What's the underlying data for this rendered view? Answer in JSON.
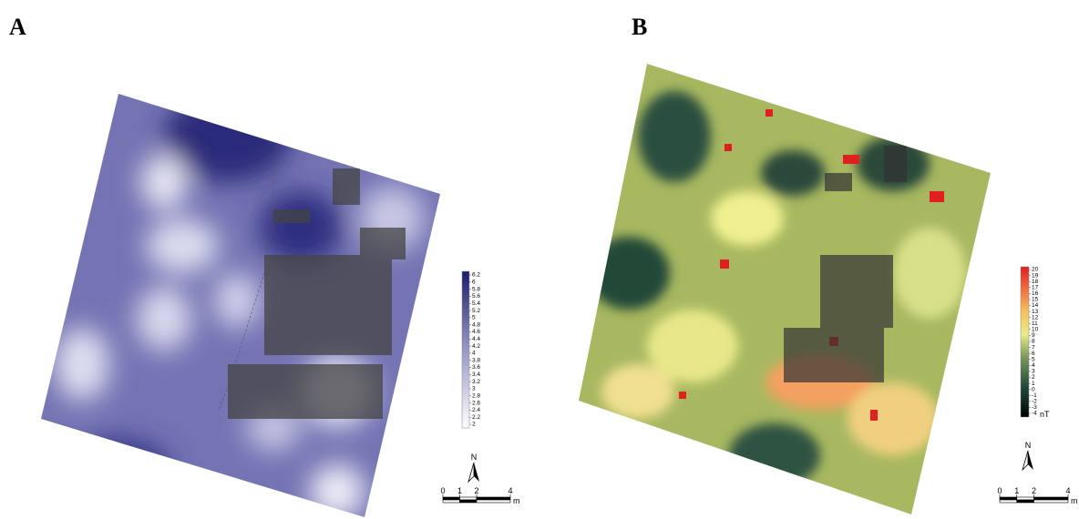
{
  "panels": [
    {
      "label": "A",
      "colorbar": {
        "ticks": [
          6.2,
          6,
          5.8,
          5.6,
          5.4,
          5.2,
          5,
          4.8,
          4.6,
          4.4,
          4.2,
          4,
          3.8,
          3.6,
          3.4,
          3.2,
          3,
          2.8,
          2.6,
          2.4,
          2.2,
          2
        ]
      },
      "north": "N",
      "scale": {
        "ticks": [
          0,
          1,
          2,
          4
        ],
        "unit": "m"
      }
    },
    {
      "label": "B",
      "colorbar": {
        "ticks": [
          20,
          19,
          18,
          17,
          16,
          15,
          14,
          13,
          12,
          11,
          10,
          9,
          8,
          7,
          6,
          5,
          4,
          3,
          2,
          1,
          0,
          -1,
          -2,
          -3,
          -4
        ],
        "unit": "nT"
      },
      "north": "N",
      "scale": {
        "ticks": [
          0,
          1,
          2,
          4
        ],
        "unit": "m"
      }
    }
  ]
}
